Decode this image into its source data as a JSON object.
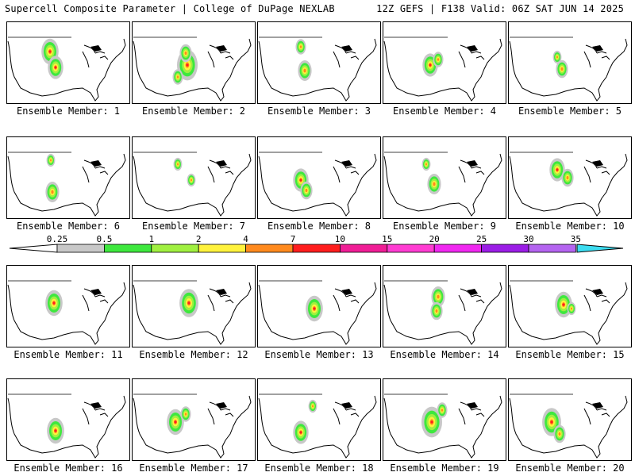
{
  "header": {
    "left_title": "Supercell Composite Parameter | College of DuPage NEXLAB",
    "right_title": "12Z GEFS | F138 Valid: 06Z SAT JUN 14 2025"
  },
  "colorbar": {
    "ticks": [
      "0.25",
      "0.5",
      "1",
      "2",
      "4",
      "7",
      "10",
      "15",
      "20",
      "25",
      "30",
      "35"
    ],
    "colors": [
      "#c8c8c8",
      "#3ee83e",
      "#a0f040",
      "#fff23c",
      "#ff8a1e",
      "#ff1e1e",
      "#f01e96",
      "#ff3cd2",
      "#f028f0",
      "#9b1ee6",
      "#b464f0",
      "#3cdcf0"
    ]
  },
  "members": [
    {
      "label": "Ensemble Member: 1"
    },
    {
      "label": "Ensemble Member: 2"
    },
    {
      "label": "Ensemble Member: 3"
    },
    {
      "label": "Ensemble Member: 4"
    },
    {
      "label": "Ensemble Member: 5"
    },
    {
      "label": "Ensemble Member: 6"
    },
    {
      "label": "Ensemble Member: 7"
    },
    {
      "label": "Ensemble Member: 8"
    },
    {
      "label": "Ensemble Member: 9"
    },
    {
      "label": "Ensemble Member: 10"
    },
    {
      "label": "Ensemble Member: 11"
    },
    {
      "label": "Ensemble Member: 12"
    },
    {
      "label": "Ensemble Member: 13"
    },
    {
      "label": "Ensemble Member: 14"
    },
    {
      "label": "Ensemble Member: 15"
    },
    {
      "label": "Ensemble Member: 16"
    },
    {
      "label": "Ensemble Member: 17"
    },
    {
      "label": "Ensemble Member: 18"
    },
    {
      "label": "Ensemble Member: 19"
    },
    {
      "label": "Ensemble Member: 20"
    }
  ]
}
